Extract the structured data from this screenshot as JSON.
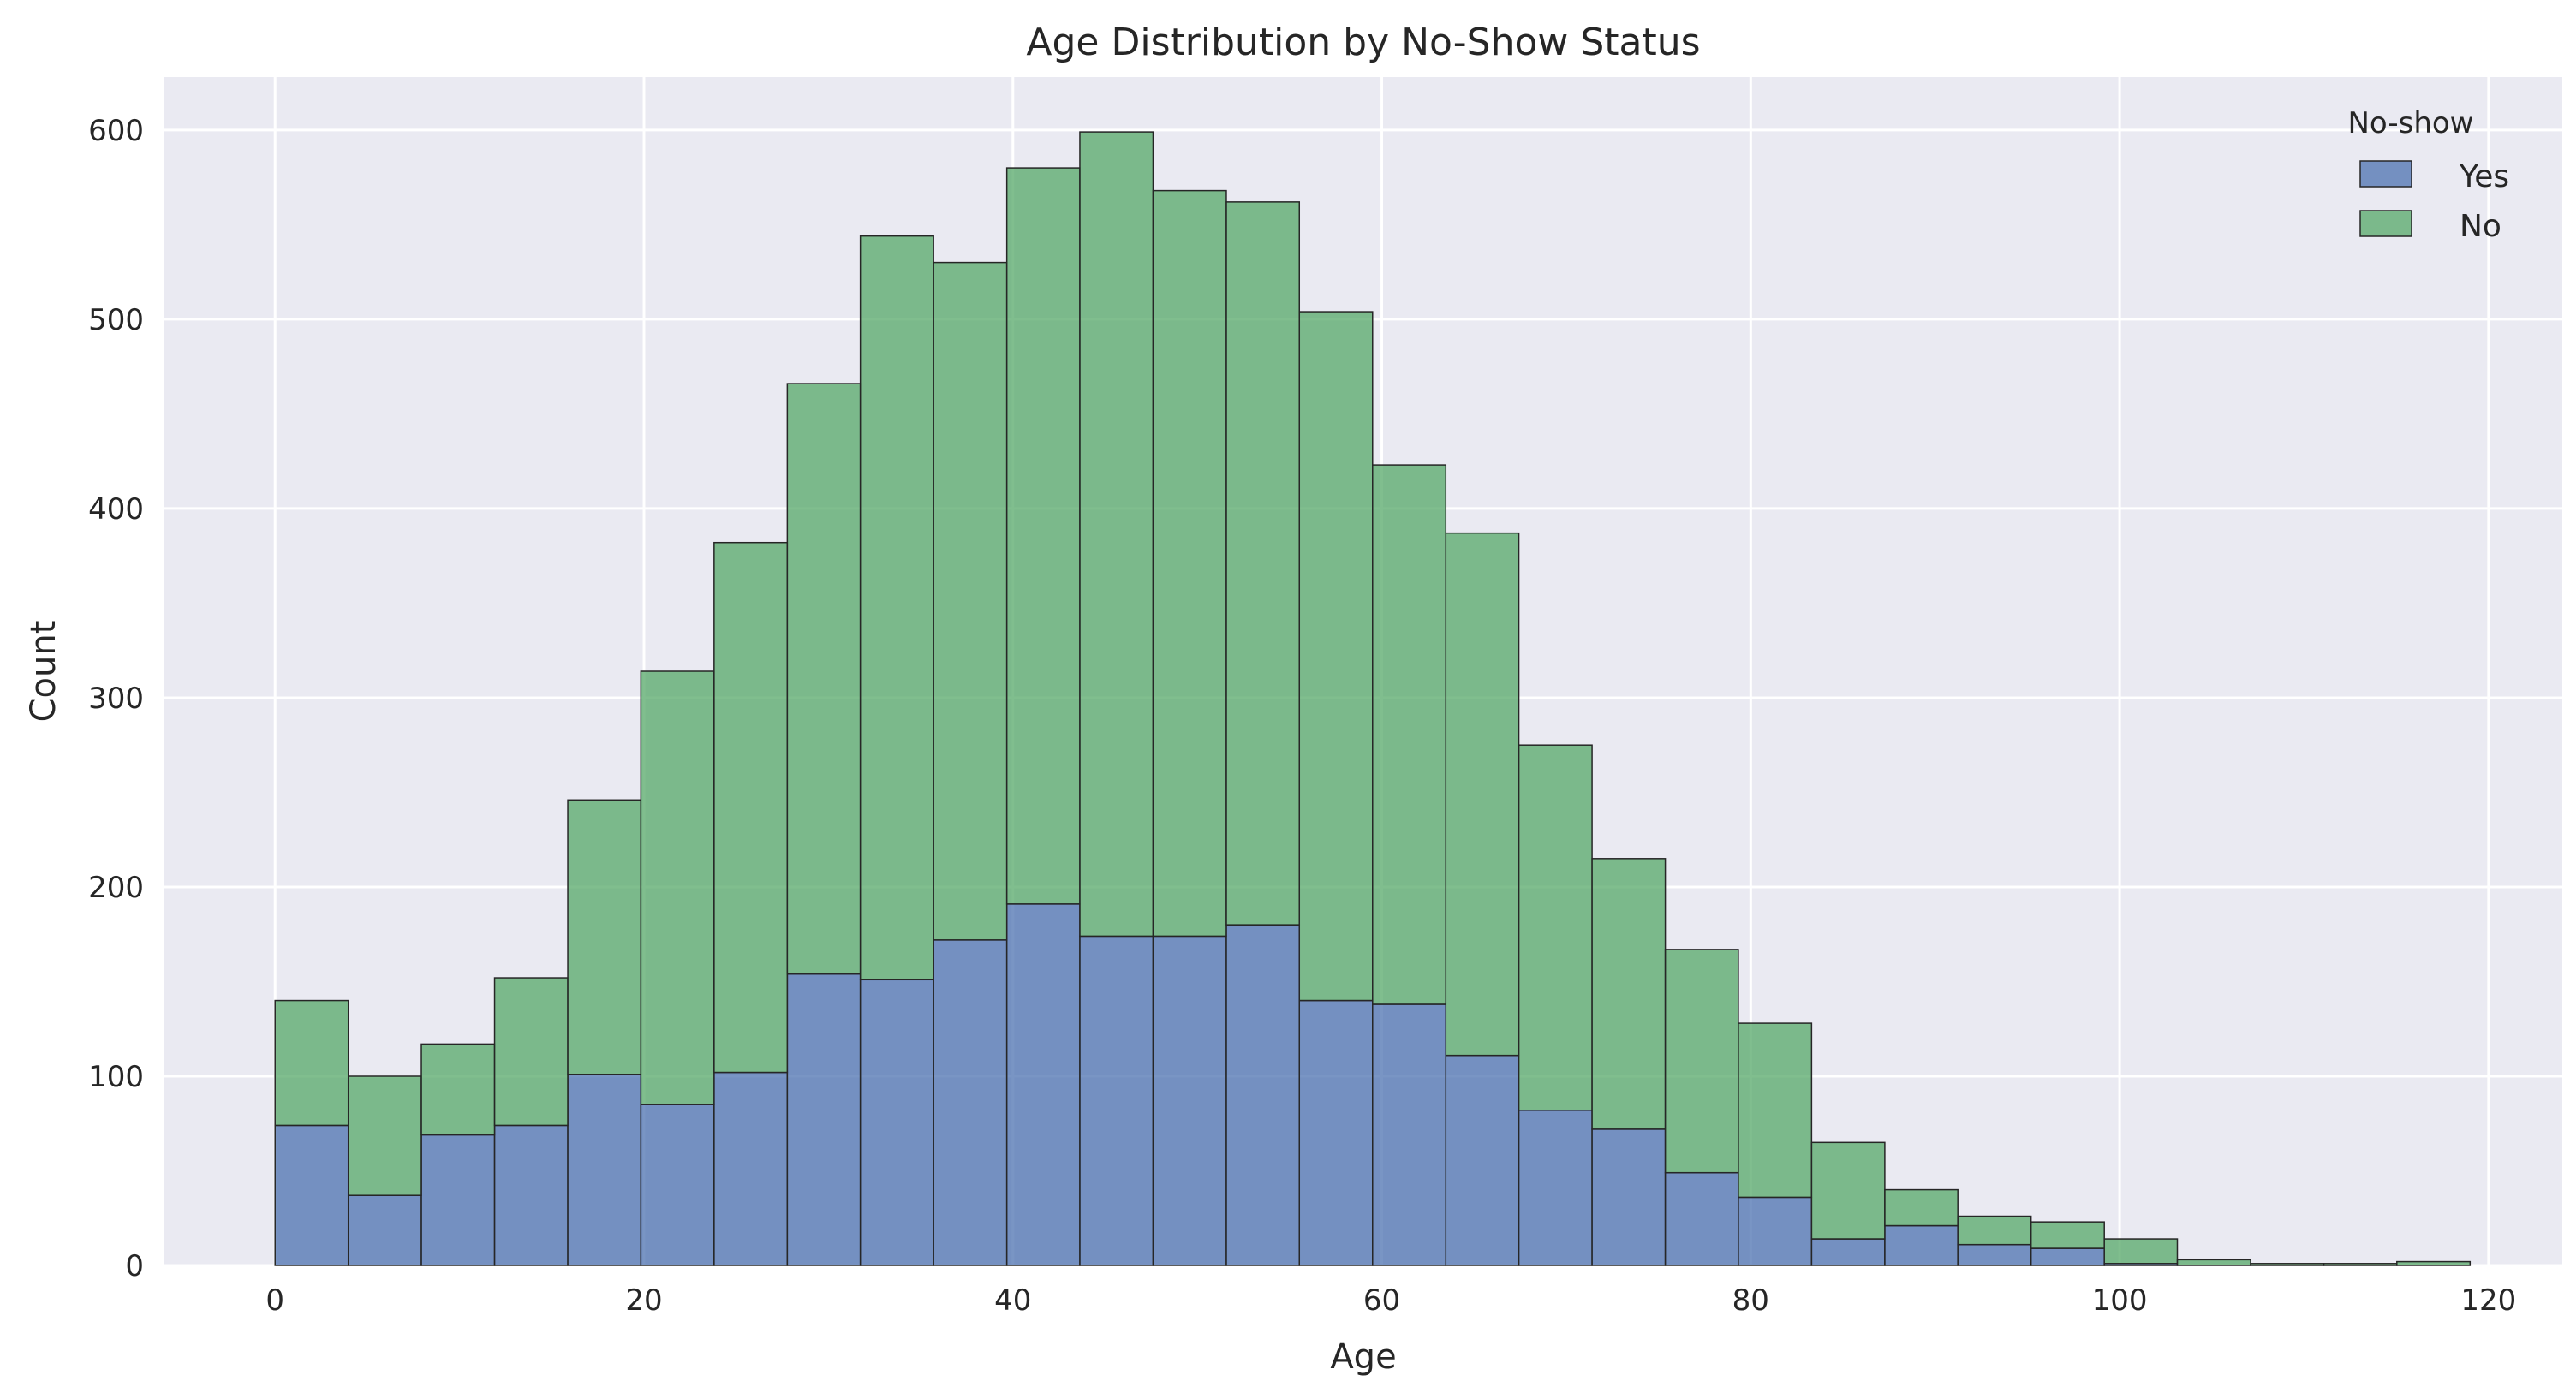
{
  "chart_data": {
    "type": "bar",
    "title": "Age Distribution by No-Show Status",
    "xlabel": "Age",
    "ylabel": "Count",
    "xlim": [
      -6,
      124
    ],
    "ylim": [
      0,
      628
    ],
    "xticks": [
      0,
      20,
      40,
      60,
      80,
      100,
      120
    ],
    "yticks": [
      0,
      100,
      200,
      300,
      400,
      500,
      600
    ],
    "grid": true,
    "stacked": true,
    "bin_edges": [
      0,
      3.97,
      7.93,
      11.9,
      15.87,
      19.83,
      23.8,
      27.77,
      31.73,
      35.7,
      39.67,
      43.63,
      47.6,
      51.57,
      55.53,
      59.5,
      63.47,
      67.43,
      71.4,
      75.37,
      79.33,
      83.3,
      87.27,
      91.23,
      95.2,
      99.17,
      103.13,
      107.1,
      111.07,
      115.03,
      119
    ],
    "legend": {
      "title": "No-show",
      "position": "top-right",
      "entries": [
        "Yes",
        "No"
      ]
    },
    "series": [
      {
        "name": "Yes",
        "color": "#4c72b0",
        "values": [
          74,
          37,
          69,
          74,
          101,
          85,
          102,
          154,
          151,
          172,
          191,
          174,
          174,
          180,
          140,
          138,
          111,
          82,
          72,
          49,
          36,
          14,
          21,
          11,
          9,
          1,
          0,
          0,
          0,
          0
        ]
      },
      {
        "name": "No",
        "color": "#55a868",
        "values": [
          66,
          63,
          48,
          78,
          145,
          229,
          280,
          312,
          393,
          358,
          389,
          425,
          394,
          382,
          364,
          285,
          276,
          193,
          143,
          118,
          92,
          51,
          19,
          15,
          14,
          13,
          3,
          1,
          1,
          2
        ]
      }
    ]
  }
}
